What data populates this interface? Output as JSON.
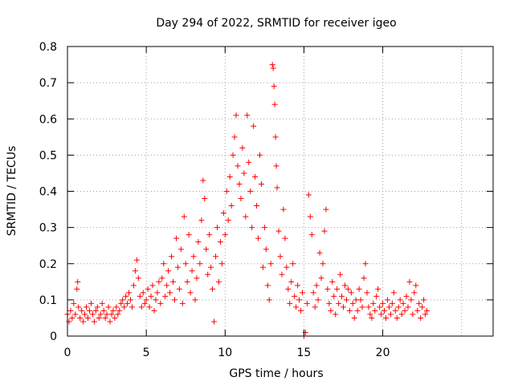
{
  "chart_data": {
    "type": "scatter",
    "title": "Day 294 of 2022, SRMTID for receiver igeo",
    "xlabel": "GPS time / hours",
    "ylabel": "SRMTID / TECUs",
    "xlim": [
      0,
      27
    ],
    "ylim": [
      0,
      0.8
    ],
    "xticks": [
      0,
      5,
      10,
      15,
      20
    ],
    "xtick_labels": [
      "0",
      "5",
      "10",
      "15",
      "20"
    ],
    "yticks": [
      0,
      0.1,
      0.2,
      0.3,
      0.4,
      0.5,
      0.6,
      0.7,
      0.8
    ],
    "ytick_labels": [
      "0",
      "0.1",
      "0.2",
      "0.3",
      "0.4",
      "0.5",
      "0.6",
      "0.7",
      "0.8"
    ],
    "grid": true,
    "marker": "+",
    "color": "#ff0000",
    "series": [
      {
        "name": "SRMTID",
        "points": [
          [
            0.0,
            0.06
          ],
          [
            0.1,
            0.04
          ],
          [
            0.2,
            0.07
          ],
          [
            0.3,
            0.05
          ],
          [
            0.4,
            0.09
          ],
          [
            0.5,
            0.06
          ],
          [
            0.6,
            0.13
          ],
          [
            0.65,
            0.15
          ],
          [
            0.7,
            0.08
          ],
          [
            0.8,
            0.05
          ],
          [
            0.9,
            0.07
          ],
          [
            1.0,
            0.04
          ],
          [
            1.1,
            0.06
          ],
          [
            1.2,
            0.08
          ],
          [
            1.3,
            0.05
          ],
          [
            1.4,
            0.07
          ],
          [
            1.5,
            0.09
          ],
          [
            1.6,
            0.06
          ],
          [
            1.7,
            0.04
          ],
          [
            1.8,
            0.07
          ],
          [
            1.9,
            0.08
          ],
          [
            2.0,
            0.05
          ],
          [
            2.1,
            0.06
          ],
          [
            2.2,
            0.09
          ],
          [
            2.3,
            0.07
          ],
          [
            2.4,
            0.05
          ],
          [
            2.5,
            0.06
          ],
          [
            2.6,
            0.08
          ],
          [
            2.7,
            0.04
          ],
          [
            2.8,
            0.06
          ],
          [
            2.9,
            0.07
          ],
          [
            3.0,
            0.05
          ],
          [
            3.1,
            0.08
          ],
          [
            3.2,
            0.06
          ],
          [
            3.3,
            0.07
          ],
          [
            3.4,
            0.09
          ],
          [
            3.5,
            0.1
          ],
          [
            3.6,
            0.08
          ],
          [
            3.7,
            0.11
          ],
          [
            3.8,
            0.09
          ],
          [
            3.9,
            0.12
          ],
          [
            4.0,
            0.1
          ],
          [
            4.1,
            0.08
          ],
          [
            4.2,
            0.14
          ],
          [
            4.3,
            0.18
          ],
          [
            4.4,
            0.21
          ],
          [
            4.5,
            0.16
          ],
          [
            4.6,
            0.11
          ],
          [
            4.7,
            0.08
          ],
          [
            4.8,
            0.12
          ],
          [
            4.9,
            0.09
          ],
          [
            5.0,
            0.1
          ],
          [
            5.1,
            0.13
          ],
          [
            5.2,
            0.08
          ],
          [
            5.3,
            0.11
          ],
          [
            5.4,
            0.14
          ],
          [
            5.5,
            0.07
          ],
          [
            5.6,
            0.1
          ],
          [
            5.7,
            0.12
          ],
          [
            5.8,
            0.15
          ],
          [
            5.9,
            0.09
          ],
          [
            6.0,
            0.16
          ],
          [
            6.1,
            0.2
          ],
          [
            6.2,
            0.11
          ],
          [
            6.3,
            0.14
          ],
          [
            6.4,
            0.18
          ],
          [
            6.5,
            0.12
          ],
          [
            6.6,
            0.22
          ],
          [
            6.7,
            0.15
          ],
          [
            6.8,
            0.1
          ],
          [
            6.9,
            0.27
          ],
          [
            7.0,
            0.19
          ],
          [
            7.1,
            0.13
          ],
          [
            7.2,
            0.24
          ],
          [
            7.3,
            0.09
          ],
          [
            7.4,
            0.33
          ],
          [
            7.5,
            0.2
          ],
          [
            7.6,
            0.15
          ],
          [
            7.7,
            0.28
          ],
          [
            7.8,
            0.12
          ],
          [
            7.9,
            0.18
          ],
          [
            8.0,
            0.22
          ],
          [
            8.1,
            0.1
          ],
          [
            8.2,
            0.16
          ],
          [
            8.3,
            0.26
          ],
          [
            8.4,
            0.2
          ],
          [
            8.5,
            0.32
          ],
          [
            8.6,
            0.43
          ],
          [
            8.7,
            0.38
          ],
          [
            8.8,
            0.24
          ],
          [
            8.9,
            0.17
          ],
          [
            9.0,
            0.28
          ],
          [
            9.1,
            0.19
          ],
          [
            9.2,
            0.13
          ],
          [
            9.3,
            0.04
          ],
          [
            9.4,
            0.22
          ],
          [
            9.5,
            0.3
          ],
          [
            9.6,
            0.15
          ],
          [
            9.7,
            0.26
          ],
          [
            9.8,
            0.2
          ],
          [
            9.9,
            0.34
          ],
          [
            10.0,
            0.28
          ],
          [
            10.1,
            0.4
          ],
          [
            10.2,
            0.32
          ],
          [
            10.3,
            0.44
          ],
          [
            10.4,
            0.36
          ],
          [
            10.5,
            0.5
          ],
          [
            10.6,
            0.55
          ],
          [
            10.7,
            0.61
          ],
          [
            10.8,
            0.47
          ],
          [
            10.9,
            0.42
          ],
          [
            11.0,
            0.38
          ],
          [
            11.1,
            0.52
          ],
          [
            11.2,
            0.45
          ],
          [
            11.3,
            0.33
          ],
          [
            11.4,
            0.61
          ],
          [
            11.5,
            0.48
          ],
          [
            11.6,
            0.4
          ],
          [
            11.7,
            0.3
          ],
          [
            11.8,
            0.58
          ],
          [
            11.9,
            0.44
          ],
          [
            12.0,
            0.36
          ],
          [
            12.1,
            0.27
          ],
          [
            12.2,
            0.5
          ],
          [
            12.3,
            0.42
          ],
          [
            12.4,
            0.19
          ],
          [
            12.5,
            0.3
          ],
          [
            12.6,
            0.24
          ],
          [
            12.7,
            0.14
          ],
          [
            12.8,
            0.1
          ],
          [
            12.9,
            0.2
          ],
          [
            13.0,
            0.75
          ],
          [
            13.05,
            0.74
          ],
          [
            13.1,
            0.69
          ],
          [
            13.15,
            0.64
          ],
          [
            13.2,
            0.55
          ],
          [
            13.25,
            0.47
          ],
          [
            13.3,
            0.41
          ],
          [
            13.4,
            0.29
          ],
          [
            13.5,
            0.22
          ],
          [
            13.6,
            0.17
          ],
          [
            13.7,
            0.35
          ],
          [
            13.8,
            0.27
          ],
          [
            13.9,
            0.19
          ],
          [
            14.0,
            0.13
          ],
          [
            14.1,
            0.09
          ],
          [
            14.2,
            0.15
          ],
          [
            14.3,
            0.2
          ],
          [
            14.4,
            0.11
          ],
          [
            14.5,
            0.08
          ],
          [
            14.6,
            0.14
          ],
          [
            14.7,
            0.1
          ],
          [
            14.8,
            0.07
          ],
          [
            14.9,
            0.12
          ],
          [
            15.0,
            0.0
          ],
          [
            15.1,
            0.01
          ],
          [
            15.2,
            0.09
          ],
          [
            15.3,
            0.39
          ],
          [
            15.4,
            0.33
          ],
          [
            15.5,
            0.28
          ],
          [
            15.6,
            0.12
          ],
          [
            15.7,
            0.08
          ],
          [
            15.8,
            0.14
          ],
          [
            15.9,
            0.1
          ],
          [
            16.0,
            0.23
          ],
          [
            16.1,
            0.16
          ],
          [
            16.2,
            0.2
          ],
          [
            16.3,
            0.29
          ],
          [
            16.4,
            0.35
          ],
          [
            16.5,
            0.13
          ],
          [
            16.6,
            0.09
          ],
          [
            16.7,
            0.07
          ],
          [
            16.8,
            0.15
          ],
          [
            16.9,
            0.11
          ],
          [
            17.0,
            0.06
          ],
          [
            17.1,
            0.13
          ],
          [
            17.2,
            0.09
          ],
          [
            17.3,
            0.17
          ],
          [
            17.4,
            0.11
          ],
          [
            17.5,
            0.08
          ],
          [
            17.6,
            0.14
          ],
          [
            17.7,
            0.1
          ],
          [
            17.8,
            0.13
          ],
          [
            17.9,
            0.07
          ],
          [
            18.0,
            0.12
          ],
          [
            18.1,
            0.09
          ],
          [
            18.2,
            0.05
          ],
          [
            18.3,
            0.1
          ],
          [
            18.4,
            0.07
          ],
          [
            18.5,
            0.13
          ],
          [
            18.6,
            0.1
          ],
          [
            18.7,
            0.08
          ],
          [
            18.8,
            0.16
          ],
          [
            18.9,
            0.2
          ],
          [
            19.0,
            0.12
          ],
          [
            19.1,
            0.08
          ],
          [
            19.2,
            0.06
          ],
          [
            19.3,
            0.05
          ],
          [
            19.4,
            0.09
          ],
          [
            19.5,
            0.07
          ],
          [
            19.6,
            0.11
          ],
          [
            19.7,
            0.13
          ],
          [
            19.8,
            0.08
          ],
          [
            19.9,
            0.06
          ],
          [
            20.0,
            0.09
          ],
          [
            20.1,
            0.07
          ],
          [
            20.2,
            0.05
          ],
          [
            20.3,
            0.1
          ],
          [
            20.4,
            0.08
          ],
          [
            20.5,
            0.06
          ],
          [
            20.6,
            0.09
          ],
          [
            20.7,
            0.12
          ],
          [
            20.8,
            0.07
          ],
          [
            20.9,
            0.05
          ],
          [
            21.0,
            0.08
          ],
          [
            21.1,
            0.1
          ],
          [
            21.2,
            0.06
          ],
          [
            21.3,
            0.09
          ],
          [
            21.4,
            0.07
          ],
          [
            21.5,
            0.11
          ],
          [
            21.6,
            0.08
          ],
          [
            21.7,
            0.15
          ],
          [
            21.8,
            0.1
          ],
          [
            21.9,
            0.06
          ],
          [
            22.0,
            0.12
          ],
          [
            22.1,
            0.14
          ],
          [
            22.2,
            0.07
          ],
          [
            22.3,
            0.09
          ],
          [
            22.4,
            0.05
          ],
          [
            22.5,
            0.08
          ],
          [
            22.6,
            0.1
          ],
          [
            22.7,
            0.06
          ],
          [
            22.8,
            0.07
          ]
        ]
      }
    ]
  }
}
